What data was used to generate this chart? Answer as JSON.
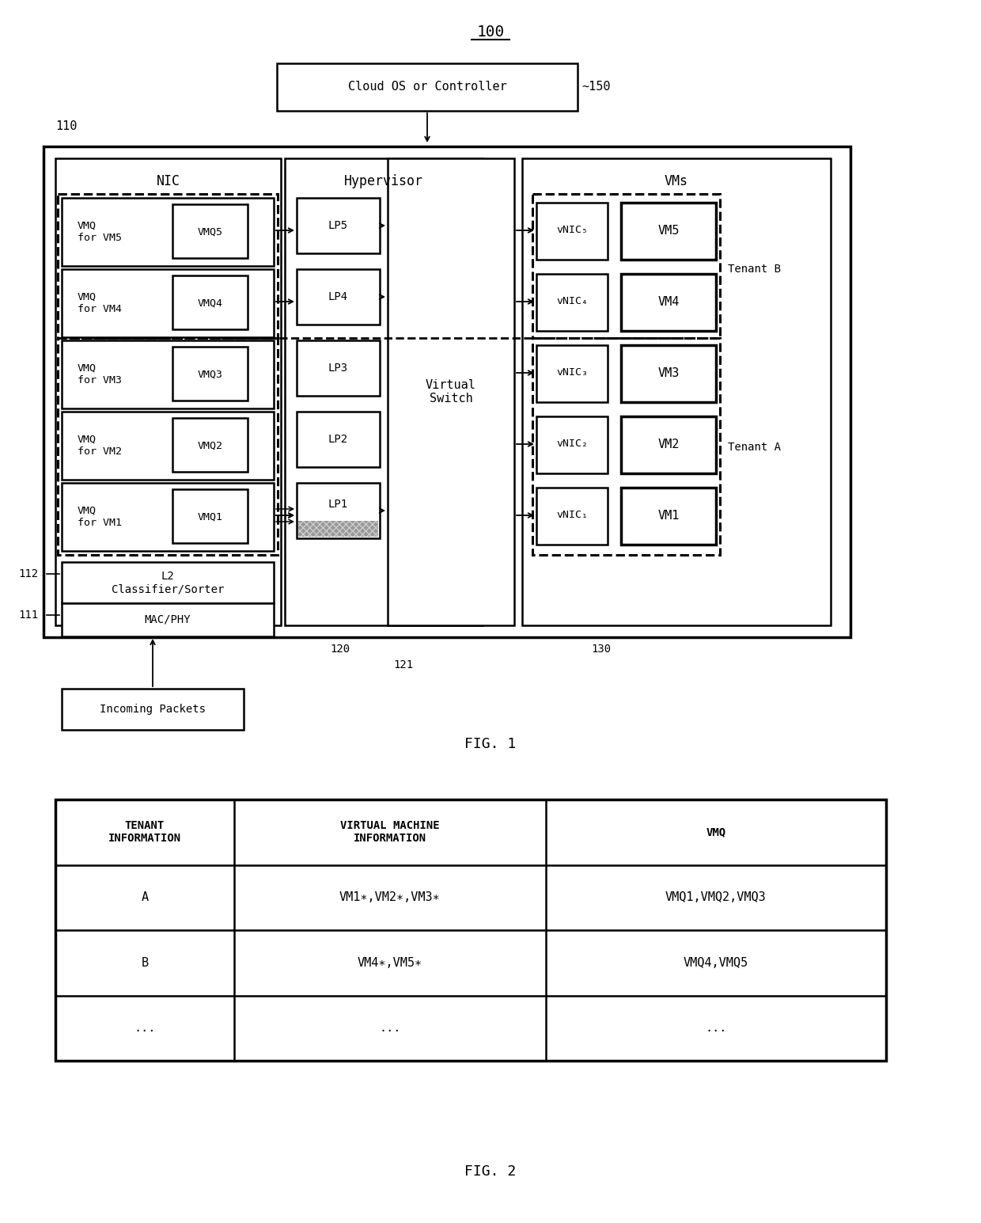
{
  "fig_width": 12.4,
  "fig_height": 15.45,
  "bg_color": "#ffffff",
  "diagram_title": "100",
  "fig1_label": "FIG. 1",
  "fig2_label": "FIG. 2",
  "cloud_box_text": "Cloud OS or Controller",
  "cloud_label": "~150",
  "main_label": "110",
  "nic_label": "NIC",
  "hypervisor_label": "Hypervisor",
  "vms_label": "VMs",
  "virtual_switch_text": "Virtual\nSwitch",
  "l2_classifier_text": "L2\nClassifier/Sorter",
  "macphy_text": "MAC/PHY",
  "incoming_packets_text": "Incoming Packets",
  "label_112": "112",
  "label_111": "111",
  "label_120": "120",
  "label_121": "121",
  "label_130": "130",
  "vmq_rows": [
    {
      "left_text": "VMQ\nfor VM5",
      "right_text": "VMQ5"
    },
    {
      "left_text": "VMQ\nfor VM4",
      "right_text": "VMQ4"
    },
    {
      "left_text": "VMQ\nfor VM3",
      "right_text": "VMQ3"
    },
    {
      "left_text": "VMQ\nfor VM2",
      "right_text": "VMQ2"
    },
    {
      "left_text": "VMQ\nfor VM1",
      "right_text": "VMQ1"
    }
  ],
  "lp_labels": [
    "LP5",
    "LP4",
    "LP3",
    "LP2",
    "LP1"
  ],
  "vnic_labels": [
    "vNIC₅",
    "vNIC₄",
    "vNIC₃",
    "vNIC₂",
    "vNIC₁"
  ],
  "vm_labels": [
    "VM5",
    "VM4",
    "VM3",
    "VM2",
    "VM1"
  ],
  "tenant_b_label": "Tenant B",
  "tenant_a_label": "Tenant A",
  "table_col1_header": "TENANT\nINFORMATION",
  "table_col2_header": "VIRTUAL MACHINE\nINFORMATION",
  "table_col3_header": "VMQ",
  "table_row1": [
    "A",
    "VM1∗,VM2∗,VM3∗",
    "VMQ1,VMQ2,VMQ3"
  ],
  "table_row2": [
    "B",
    "VM4∗,VM5∗",
    "VMQ4,VMQ5"
  ],
  "table_row3": [
    "...",
    "...",
    "..."
  ]
}
